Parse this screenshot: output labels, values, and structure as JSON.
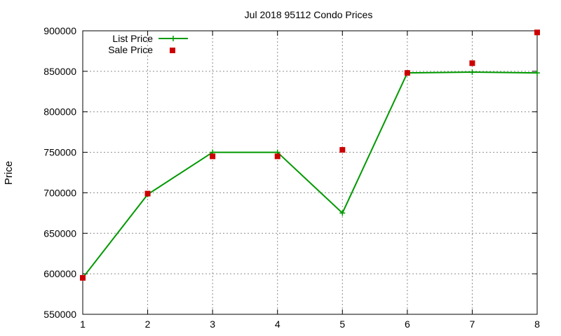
{
  "chart_data": {
    "type": "line",
    "title": "Jul 2018 95112 Condo Prices",
    "xlabel": "",
    "ylabel": "Price",
    "x": [
      1,
      2,
      3,
      4,
      5,
      6,
      7,
      8
    ],
    "xlim": [
      1,
      8
    ],
    "ylim": [
      550000,
      900000
    ],
    "xticks": [
      "1",
      "2",
      "3",
      "4",
      "5",
      "6",
      "7",
      "8"
    ],
    "yticks": [
      "550000",
      "600000",
      "650000",
      "700000",
      "750000",
      "800000",
      "850000",
      "900000"
    ],
    "grid": true,
    "legend_position": "top-left",
    "series": [
      {
        "name": "List Price",
        "style": "line-with-plus-markers",
        "color": "#009900",
        "values": [
          595000,
          698000,
          750000,
          750000,
          675000,
          848000,
          849000,
          848000
        ]
      },
      {
        "name": "Sale Price",
        "style": "square-markers",
        "color": "#cc0000",
        "values": [
          595000,
          699000,
          745000,
          745000,
          753000,
          848000,
          860000,
          898000
        ]
      }
    ]
  }
}
